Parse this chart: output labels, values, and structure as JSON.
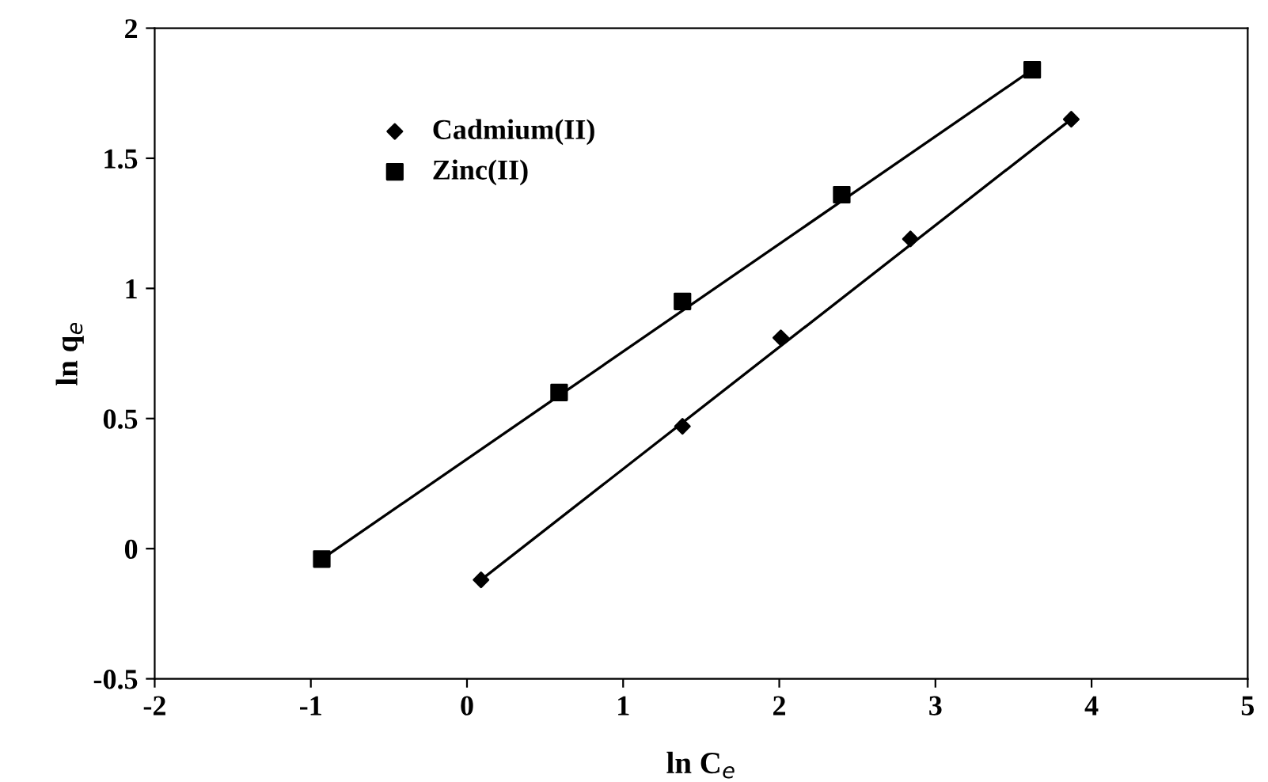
{
  "chart_data": {
    "type": "scatter",
    "xlabel": "ln C$_{e}$",
    "ylabel": "ln q$_{e}$",
    "xlim": [
      -2,
      5
    ],
    "ylim": [
      -0.5,
      2
    ],
    "xticks": [
      -2,
      -1,
      0,
      1,
      2,
      3,
      4,
      5
    ],
    "yticks": [
      -0.5,
      0,
      0.5,
      1,
      1.5,
      2
    ],
    "grid": false,
    "legend": "top left",
    "series": [
      {
        "name": "Cadmium(II)",
        "marker": "diamond",
        "color": "#000000",
        "x": [
          0.09,
          1.38,
          2.01,
          2.84,
          3.87
        ],
        "values": [
          -0.12,
          0.47,
          0.81,
          1.19,
          1.65
        ]
      },
      {
        "name": "Zinc(II)",
        "marker": "square",
        "color": "#000000",
        "x": [
          -0.93,
          0.59,
          1.38,
          2.4,
          3.62
        ],
        "values": [
          -0.04,
          0.6,
          0.95,
          1.36,
          1.84
        ]
      },
      {
        "type": "line",
        "marker": "none",
        "line_style": "solid",
        "color": "#000000",
        "x": [
          0.09,
          3.87
        ],
        "values": [
          -0.12,
          1.65
        ]
      },
      {
        "type": "line",
        "marker": "none",
        "line_style": "solid",
        "color": "#000000",
        "x": [
          -0.93,
          3.62
        ],
        "values": [
          -0.04,
          1.84
        ]
      }
    ]
  }
}
